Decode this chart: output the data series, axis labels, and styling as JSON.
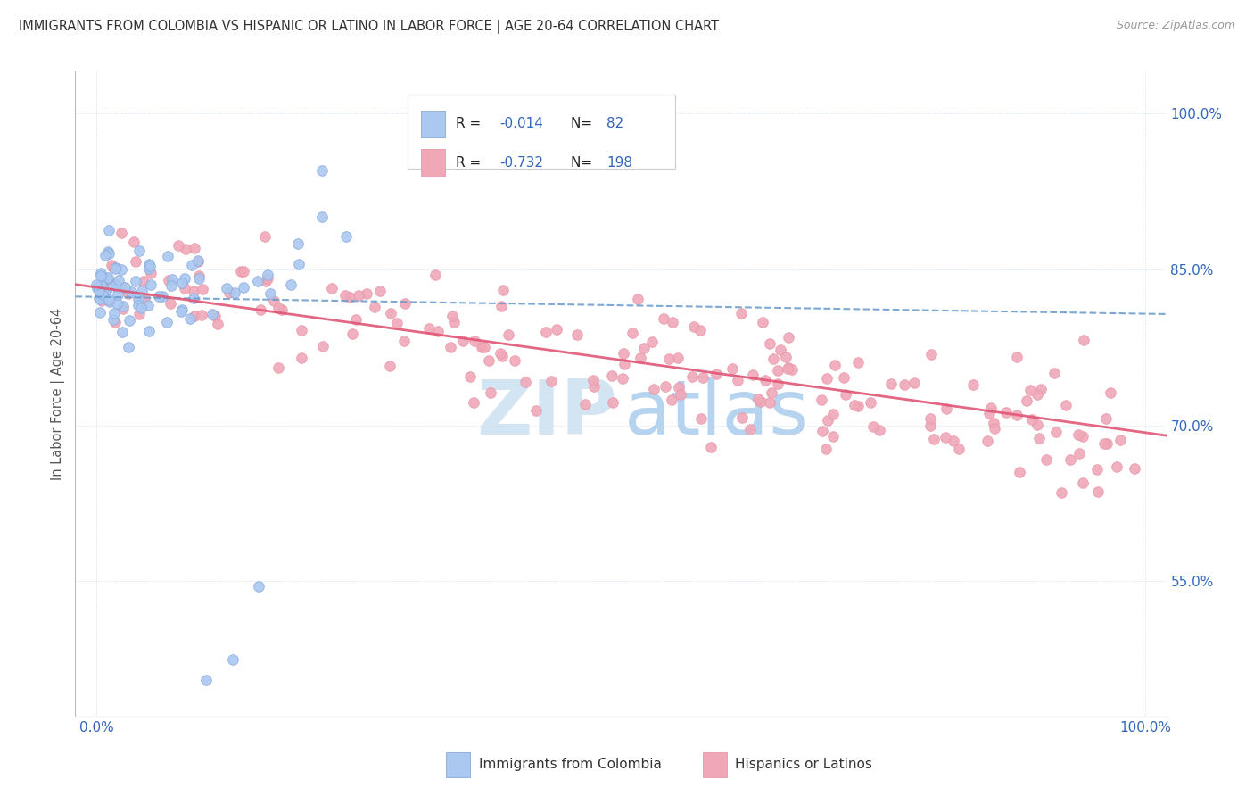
{
  "title": "IMMIGRANTS FROM COLOMBIA VS HISPANIC OR LATINO IN LABOR FORCE | AGE 20-64 CORRELATION CHART",
  "source": "Source: ZipAtlas.com",
  "ylabel": "In Labor Force | Age 20-64",
  "colombia_color": "#aac8f0",
  "colombia_edge_color": "#88aadd",
  "hispanic_color": "#f0a8b8",
  "hispanic_edge_color": "#e898a8",
  "colombia_line_color": "#6699cc",
  "hispanic_line_color": "#e05575",
  "background_color": "#ffffff",
  "grid_color": "#cce0f0",
  "watermark_zip_color": "#cce0f0",
  "watermark_atlas_color": "#aaccee",
  "title_color": "#333333",
  "source_color": "#999999",
  "ylabel_color": "#555555",
  "tick_color": "#3366bb",
  "legend_R_label_color": "#333333",
  "legend_value_color": "#3366bb",
  "yticks": [
    0.55,
    0.7,
    0.85,
    1.0
  ],
  "ytick_labels": [
    "55.0%",
    "70.0%",
    "85.0%",
    "100.0%"
  ],
  "xticks": [
    0.0,
    1.0
  ],
  "xtick_labels": [
    "0.0%",
    "100.0%"
  ],
  "colombia_R": "-0.014",
  "colombia_N": "82",
  "hispanic_R": "-0.732",
  "hispanic_N": "198",
  "colombia_label": "Immigrants from Colombia",
  "hispanic_label": "Hispanics or Latinos"
}
